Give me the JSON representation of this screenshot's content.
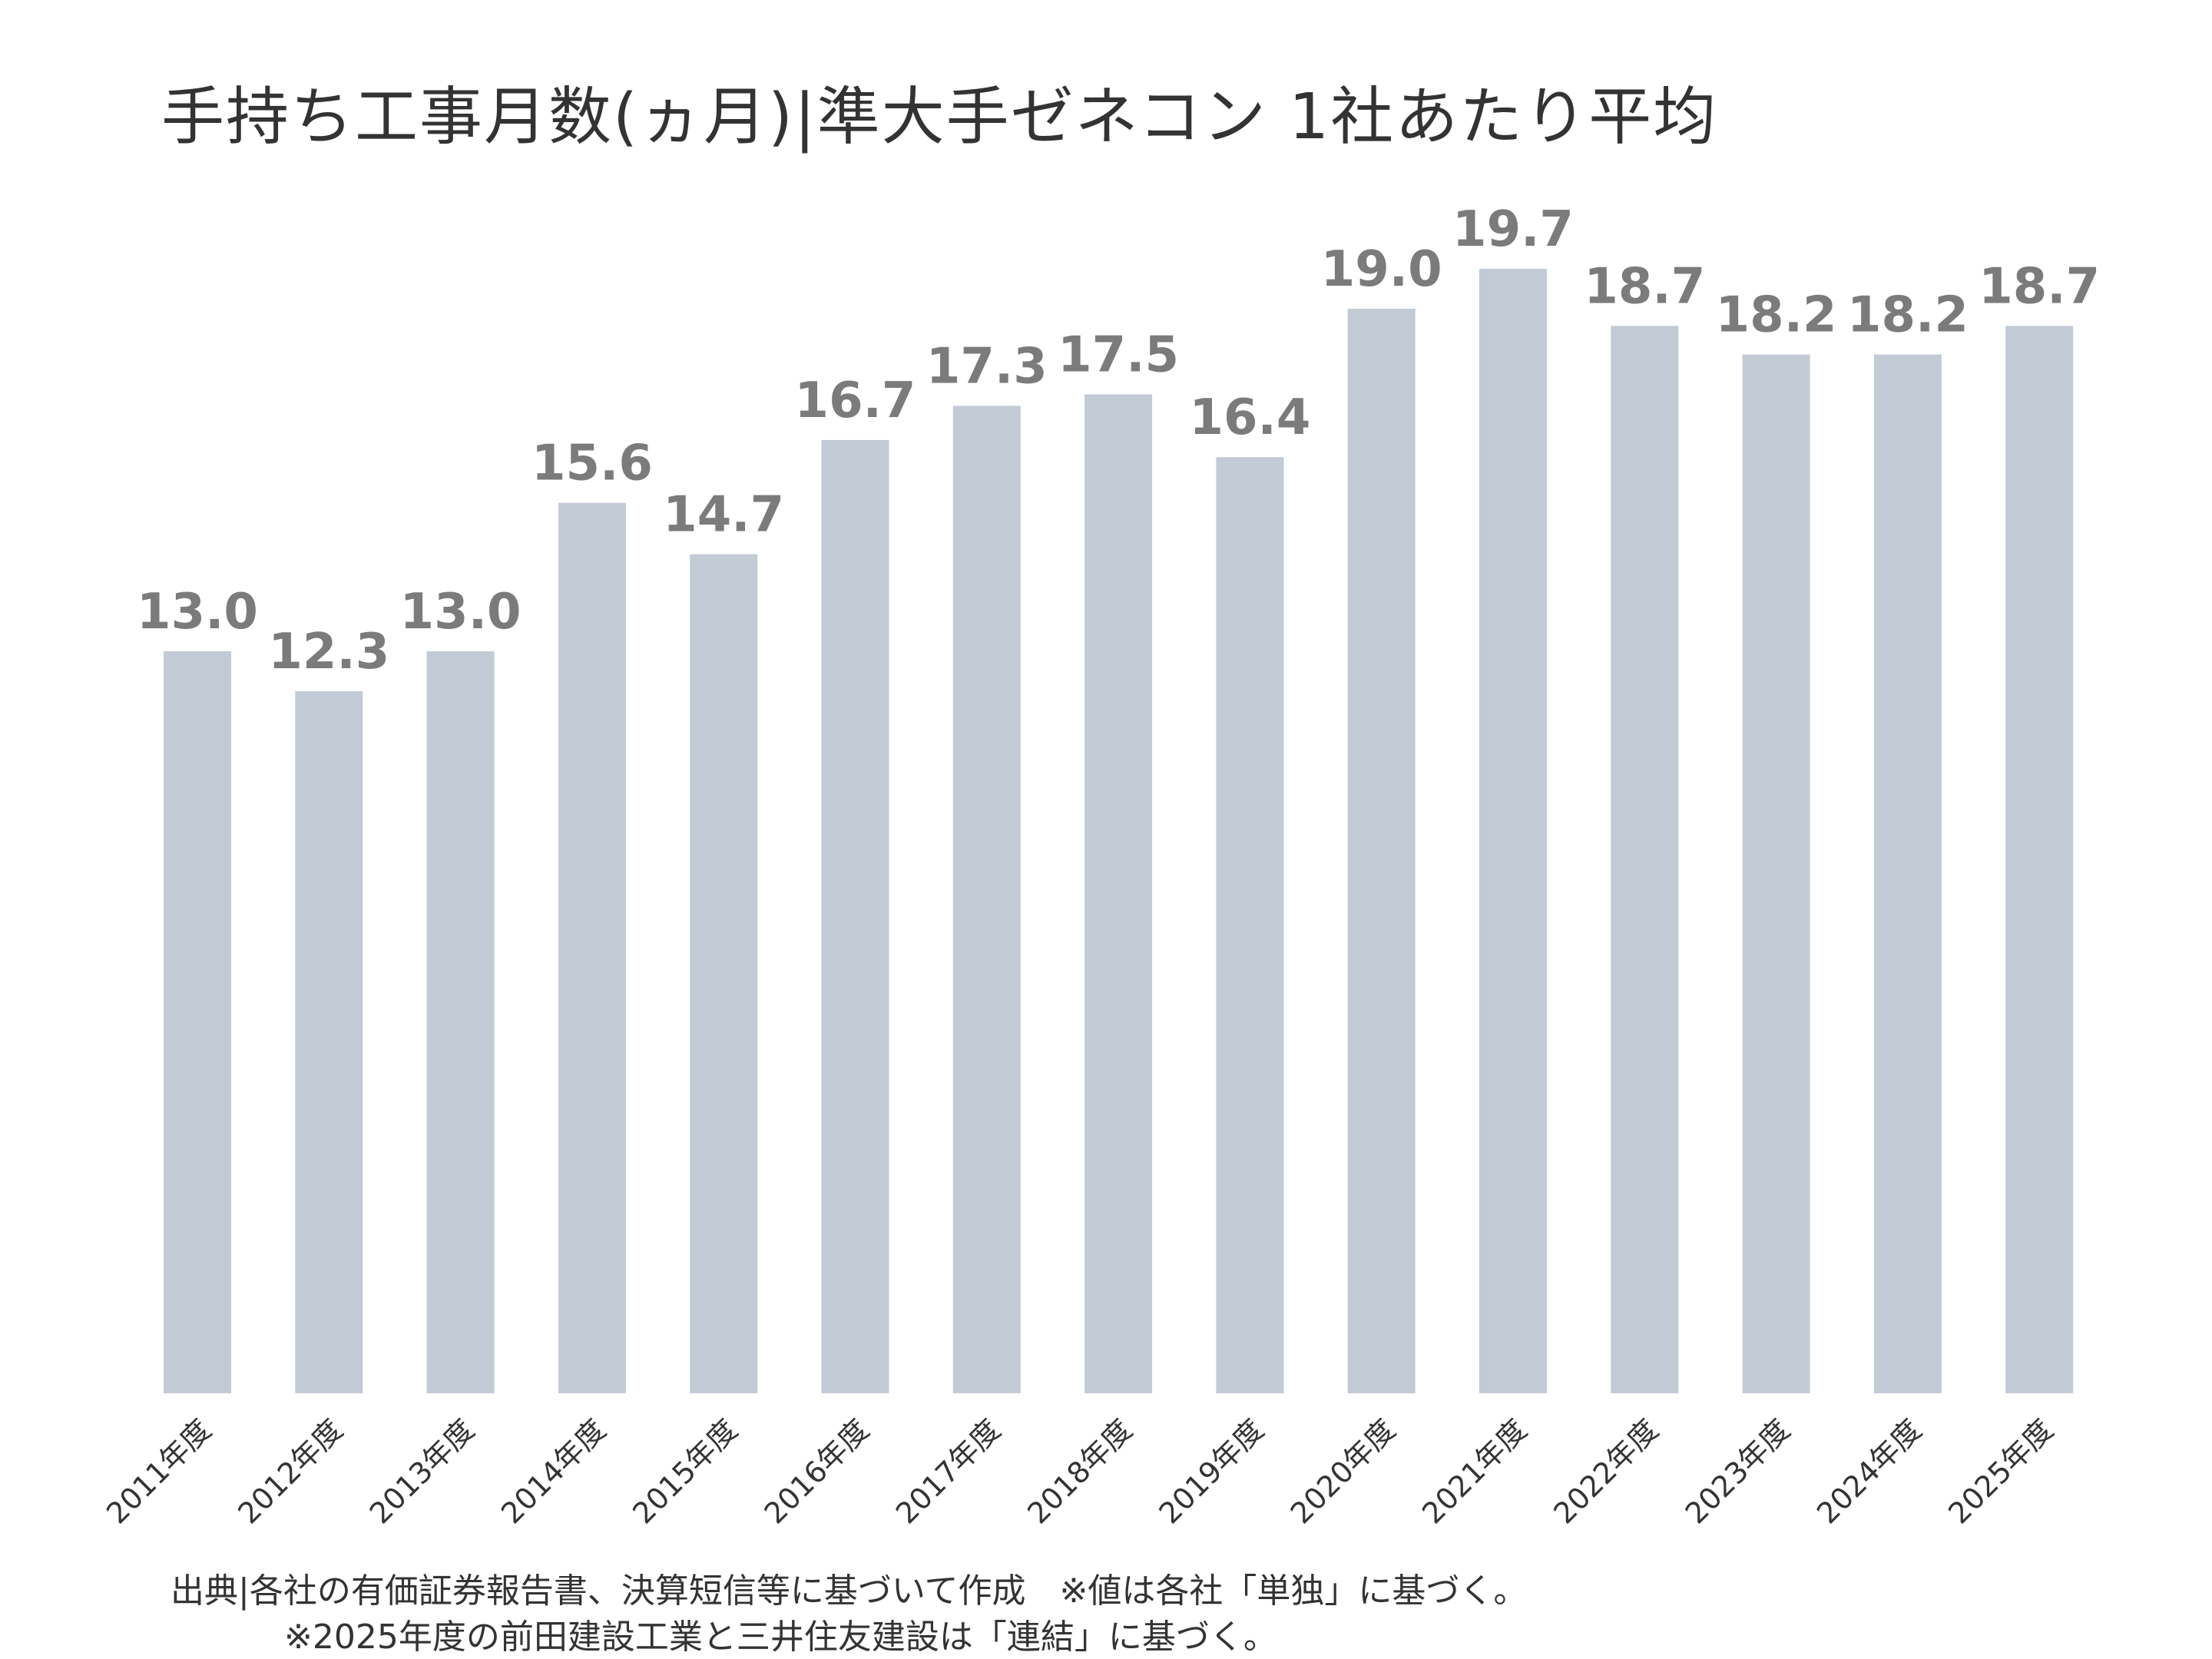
{
  "chart_data": {
    "type": "bar",
    "title": "手持ち工事月数(ヵ月)|準大手ゼネコン 1社あたり平均",
    "xlabel": "",
    "ylabel": "",
    "categories": [
      "2011年度",
      "2012年度",
      "2013年度",
      "2014年度",
      "2015年度",
      "2016年度",
      "2017年度",
      "2018年度",
      "2019年度",
      "2020年度",
      "2021年度",
      "2022年度",
      "2023年度",
      "2024年度",
      "2025年度"
    ],
    "values": [
      13.0,
      12.3,
      13.0,
      15.6,
      14.7,
      16.7,
      17.3,
      17.5,
      16.4,
      19.0,
      19.7,
      18.7,
      18.2,
      18.2,
      18.7
    ],
    "value_labels": [
      "13.0",
      "12.3",
      "13.0",
      "15.6",
      "14.7",
      "16.7",
      "17.3",
      "17.5",
      "16.4",
      "19.0",
      "19.7",
      "18.7",
      "18.2",
      "18.2",
      "18.7"
    ],
    "ylim": [
      0,
      19.7
    ],
    "grid": false,
    "legend": "none",
    "bar_color": "#c2cad6",
    "label_color": "#7b7b7b"
  },
  "footnotes": {
    "line1": "出典|各社の有価証券報告書、決算短信等に基づいて作成　※値は各社「単独」に基づく。",
    "line2": "※2025年度の前田建設工業と三井住友建設は「連結」に基づく。"
  }
}
